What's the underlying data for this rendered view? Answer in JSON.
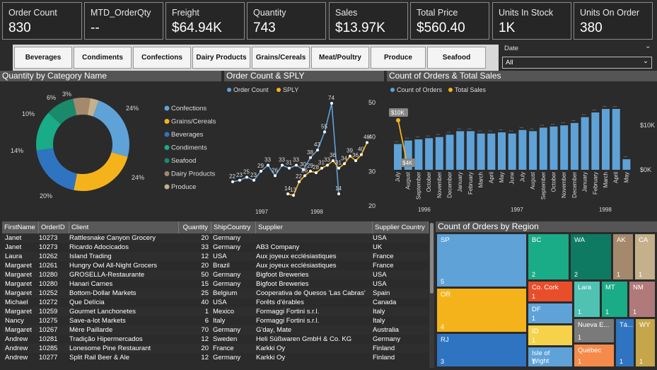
{
  "kpis": [
    {
      "label": "Order Count",
      "value": "830"
    },
    {
      "label": "MTD_OrderQty",
      "value": "--"
    },
    {
      "label": "Freight",
      "value": "$64.94K"
    },
    {
      "label": "Quantity",
      "value": "743"
    },
    {
      "label": "Sales",
      "value": "$13.97K"
    },
    {
      "label": "Total Price",
      "value": "$560.40"
    },
    {
      "label": "Units In Stock",
      "value": "1K"
    },
    {
      "label": "Units On Order",
      "value": "380"
    }
  ],
  "slicers": [
    "Beverages",
    "Condiments",
    "Confections",
    "Dairy Products",
    "Grains/Cereals",
    "Meat/Poultry",
    "Produce",
    "Seafood"
  ],
  "date_filter": {
    "label": "Date",
    "value": "All"
  },
  "donut": {
    "title": "Quantity by Category Name",
    "slices": [
      {
        "name": "Confections",
        "pct": "24%",
        "value": 24,
        "color": "#5ea2d8"
      },
      {
        "name": "Grains/Cereals",
        "pct": "24%",
        "value": 24,
        "color": "#f5b31b"
      },
      {
        "name": "Beverages",
        "pct": "20%",
        "value": 20,
        "color": "#2f74c0"
      },
      {
        "name": "Condiments",
        "pct": "14%",
        "value": 14,
        "color": "#1aab87"
      },
      {
        "name": "Seafood",
        "pct": "10%",
        "value": 10,
        "color": "#1a8a6a"
      },
      {
        "name": "Dairy Products",
        "pct": "6%",
        "value": 6,
        "color": "#a5896c"
      },
      {
        "name": "Produce",
        "pct": "3%",
        "value": 3,
        "color": "#c5b08c"
      }
    ]
  },
  "line": {
    "title": "Order Count & SPLY",
    "legend": [
      "Order Count",
      "SPLY"
    ],
    "order_count": [
      22,
      23,
      25,
      23,
      29,
      33,
      26,
      33,
      31,
      33,
      30,
      38,
      43,
      55,
      74,
      14
    ],
    "sply": [
      14,
      13,
      22,
      26,
      29,
      28,
      31,
      33,
      36,
      31,
      34,
      39,
      36,
      40,
      48
    ],
    "yticks": [
      "50",
      "40",
      "30",
      "20"
    ],
    "xlabels": [
      "1997",
      "1998"
    ]
  },
  "bars": {
    "title": "Count of Orders & Total Sales",
    "legend": [
      "Count of Orders",
      "Total Sales"
    ],
    "months": [
      "July",
      "August",
      "September",
      "October",
      "November",
      "December",
      "January",
      "February",
      "March",
      "April",
      "May",
      "June",
      "July",
      "August",
      "September",
      "October",
      "November",
      "December",
      "January",
      "February",
      "March",
      "April",
      "May"
    ],
    "values": [
      22,
      25,
      26,
      27,
      28,
      30,
      33,
      33,
      31,
      31,
      32,
      31,
      34,
      33,
      36,
      37,
      38,
      40,
      45,
      49,
      52,
      52,
      9
    ],
    "sales_labels": [
      "$10K",
      "$4K"
    ],
    "right_ticks": [
      "$10K",
      "$0K"
    ],
    "years": [
      "1996",
      "1997",
      "1998"
    ]
  },
  "table": {
    "headers": [
      "FirstName",
      "OrderID",
      "Client",
      "Quantity",
      "ShipCountry",
      "Supplier",
      "Supplier Country"
    ],
    "rows": [
      [
        "Janet",
        "10273",
        "Rattlesnake Canyon Grocery",
        "20",
        "Germany",
        "",
        "USA"
      ],
      [
        "Janet",
        "10273",
        "Ricardo Adocicados",
        "33",
        "Germany",
        "AB3 Company",
        "UK"
      ],
      [
        "Laura",
        "10262",
        "Island Trading",
        "12",
        "USA",
        "Aux joyeux ecclésiastiques",
        "France"
      ],
      [
        "Margaret",
        "10261",
        "Hungry Owl All-Night Grocers",
        "20",
        "Brazil",
        "Aux joyeux ecclésiastiques",
        "France"
      ],
      [
        "Margaret",
        "10280",
        "GROSELLA-Restaurante",
        "50",
        "Germany",
        "Bigfoot Breweries",
        "USA"
      ],
      [
        "Margaret",
        "10280",
        "Hanari Carnes",
        "15",
        "Germany",
        "Bigfoot Breweries",
        "USA"
      ],
      [
        "Margaret",
        "10252",
        "Bottom-Dollar Markets",
        "25",
        "Belgium",
        "Cooperativa de Quesos 'Las Cabras'",
        "Spain"
      ],
      [
        "Michael",
        "10272",
        "Que Delícia",
        "40",
        "USA",
        "Forêts d'érables",
        "Canada"
      ],
      [
        "Margaret",
        "10259",
        "Gourmet Lanchonetes",
        "1",
        "Mexico",
        "Formaggi Fortini s.r.l.",
        "Italy"
      ],
      [
        "Nancy",
        "10275",
        "Save-a-lot Markets",
        "6",
        "Italy",
        "Formaggi Fortini s.r.l.",
        "Italy"
      ],
      [
        "Margaret",
        "10267",
        "Mère Paillarde",
        "70",
        "Germany",
        "G'day, Mate",
        "Australia"
      ],
      [
        "Andrew",
        "10281",
        "Tradição Hipermercados",
        "12",
        "Sweden",
        "Heli Süßwaren GmbH & Co. KG",
        "Germany"
      ],
      [
        "Andrew",
        "10285",
        "Lonesome Pine Restaurant",
        "20",
        "France",
        "Karkki Oy",
        "Finland"
      ],
      [
        "Andrew",
        "10277",
        "Split Rail Beer & Ale",
        "12",
        "Germany",
        "Karkki Oy",
        "Finland"
      ]
    ]
  },
  "treemap": {
    "title": "Count of Orders by Region",
    "cells": [
      {
        "name": "SP",
        "n": "5",
        "color": "#5ea2d8"
      },
      {
        "name": "OR",
        "n": "4",
        "color": "#f5b31b"
      },
      {
        "name": "RJ",
        "n": "3",
        "color": "#2f74c0"
      },
      {
        "name": "BC",
        "n": "2",
        "color": "#1aab87"
      },
      {
        "name": "WA",
        "n": "2",
        "color": "#0e7a62"
      },
      {
        "name": "AK",
        "n": "1",
        "color": "#a5896c"
      },
      {
        "name": "CA",
        "n": "1",
        "color": "#c5b08c"
      },
      {
        "name": "Co. Cork",
        "n": "1",
        "color": "#e94e2b"
      },
      {
        "name": "DF",
        "n": "1",
        "color": "#5ea2d8"
      },
      {
        "name": "ID",
        "n": "1",
        "color": "#f5d24a"
      },
      {
        "name": "Isle of Wight",
        "n": "1",
        "color": "#5ea2d8"
      },
      {
        "name": "Lara",
        "n": "1",
        "color": "#4fc2b4"
      },
      {
        "name": "MT",
        "n": "1",
        "color": "#1aab87"
      },
      {
        "name": "NM",
        "n": "1",
        "color": "#b07a7a"
      },
      {
        "name": "Nueva E...",
        "n": "1",
        "color": "#7a7a7a"
      },
      {
        "name": "Tá...",
        "n": "1",
        "color": "#2f74c0"
      },
      {
        "name": "WY",
        "n": "1",
        "color": "#c5a64a"
      },
      {
        "name": "Québec",
        "n": "1",
        "color": "#f58a4b"
      }
    ]
  }
}
